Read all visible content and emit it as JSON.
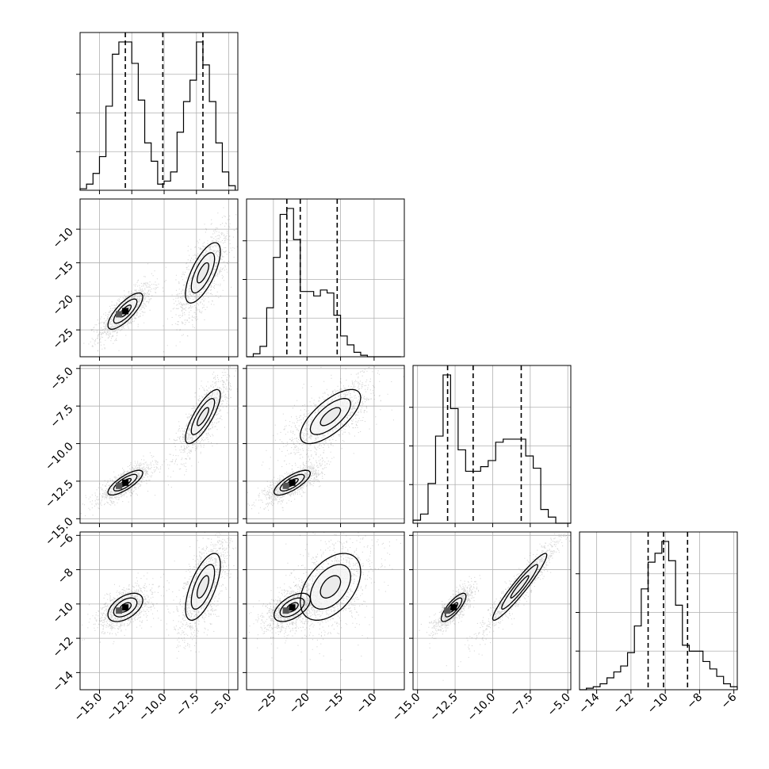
{
  "chart_data": {
    "type": "corner",
    "grid": true,
    "n_params": 4,
    "params": [
      {
        "range": [
          -16.5,
          -4.3
        ],
        "ticks": [
          -15.0,
          -12.5,
          -10.0,
          -7.5,
          -5.0
        ],
        "tick_labels": [
          "−15.0",
          "−12.5",
          "−10.0",
          "−7.5",
          "−5.0"
        ],
        "quantiles": [
          -13.0,
          -10.1,
          -7.0
        ],
        "hist": {
          "bin_edges": [
            -16.5,
            -16.0,
            -15.5,
            -15.0,
            -14.5,
            -14.0,
            -13.5,
            -13.0,
            -12.5,
            -12.0,
            -11.5,
            -11.0,
            -10.5,
            -10.0,
            -9.5,
            -9.0,
            -8.5,
            -8.0,
            -7.5,
            -7.0,
            -6.5,
            -6.0,
            -5.5,
            -5.0,
            -4.5
          ],
          "counts": [
            0.01,
            0.04,
            0.11,
            0.22,
            0.55,
            0.89,
            0.97,
            0.97,
            0.83,
            0.59,
            0.31,
            0.19,
            0.04,
            0.06,
            0.12,
            0.38,
            0.58,
            0.72,
            0.97,
            0.82,
            0.58,
            0.31,
            0.12,
            0.03
          ]
        }
      },
      {
        "range": [
          -29.0,
          -5.5
        ],
        "ticks": [
          -25,
          -20,
          -15,
          -10
        ],
        "tick_labels": [
          "−25",
          "−20",
          "−15",
          "−10"
        ],
        "quantiles": [
          -23.0,
          -21.0,
          -15.5
        ],
        "hist": {
          "bin_edges": [
            -29,
            -28,
            -27,
            -26,
            -25,
            -24,
            -23,
            -22,
            -21,
            -20,
            -19,
            -18,
            -17,
            -16,
            -15,
            -14,
            -13,
            -12,
            -11,
            -10,
            -9,
            -8,
            -7,
            -6
          ],
          "counts": [
            0.0,
            0.02,
            0.07,
            0.33,
            0.67,
            0.96,
            1.0,
            0.79,
            0.44,
            0.44,
            0.41,
            0.45,
            0.43,
            0.28,
            0.14,
            0.08,
            0.03,
            0.01,
            0.0,
            0.0,
            0.0,
            0.0,
            0.0
          ]
        }
      },
      {
        "range": [
          -15.3,
          -4.8
        ],
        "ticks": [
          -15.0,
          -12.5,
          -10.0,
          -7.5,
          -5.0
        ],
        "tick_labels": [
          "−15.0",
          "−12.5",
          "−10.0",
          "−7.5",
          "−5.0"
        ],
        "quantiles": [
          -13.0,
          -11.3,
          -8.1
        ],
        "hist": {
          "bin_edges": [
            -15.3,
            -14.8,
            -14.3,
            -13.8,
            -13.3,
            -12.8,
            -12.3,
            -11.8,
            -11.3,
            -10.8,
            -10.3,
            -9.8,
            -9.3,
            -8.8,
            -8.3,
            -7.8,
            -7.3,
            -6.8,
            -6.3,
            -5.8,
            -5.3,
            -4.8
          ],
          "counts": [
            0.02,
            0.06,
            0.26,
            0.57,
            0.97,
            0.75,
            0.48,
            0.34,
            0.34,
            0.37,
            0.41,
            0.53,
            0.55,
            0.55,
            0.55,
            0.44,
            0.36,
            0.09,
            0.04,
            0.0,
            0.0
          ]
        }
      },
      {
        "range": [
          -15.0,
          -5.8
        ],
        "ticks": [
          -14,
          -12,
          -10,
          -8,
          -6
        ],
        "tick_labels": [
          "−14",
          "−12",
          "−10",
          "−8",
          "−6"
        ],
        "quantiles": [
          -11.0,
          -10.1,
          -8.7
        ],
        "hist": {
          "bin_edges": [
            -15.0,
            -14.6,
            -14.2,
            -13.8,
            -13.4,
            -13.0,
            -12.6,
            -12.2,
            -11.8,
            -11.4,
            -11.0,
            -10.6,
            -10.2,
            -9.8,
            -9.4,
            -9.0,
            -8.6,
            -8.2,
            -7.8,
            -7.4,
            -7.0,
            -6.6,
            -6.2,
            -5.8
          ],
          "counts": [
            0.0,
            0.01,
            0.02,
            0.04,
            0.08,
            0.12,
            0.16,
            0.25,
            0.43,
            0.68,
            0.86,
            0.92,
            1.0,
            0.87,
            0.57,
            0.3,
            0.26,
            0.26,
            0.19,
            0.14,
            0.09,
            0.04,
            0.02
          ]
        }
      }
    ],
    "modes": [
      {
        "weight": 0.5,
        "mean": [
          -13.0,
          -22.2,
          -12.6,
          -10.2
        ],
        "std": [
          0.9,
          1.8,
          0.55,
          0.55
        ]
      },
      {
        "weight": 0.5,
        "mean": [
          -7.0,
          -16.5,
          -8.2,
          -9.0
        ],
        "std": [
          0.9,
          3.0,
          1.2,
          1.3
        ]
      }
    ],
    "contour_levels": [
      0.5,
      1.0,
      1.5
    ]
  }
}
